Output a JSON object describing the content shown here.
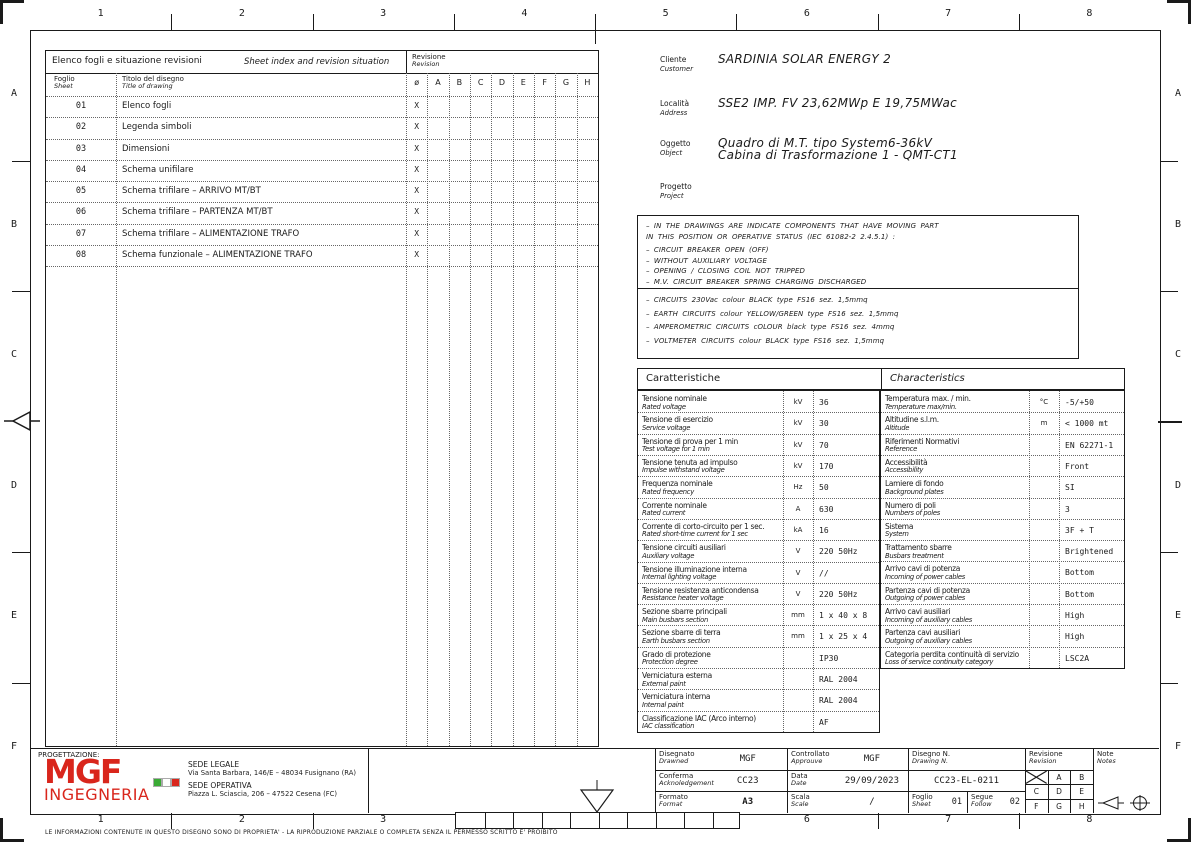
{
  "grid_refs": {
    "columns": [
      "1",
      "2",
      "3",
      "4",
      "5",
      "6",
      "7",
      "8"
    ],
    "rows": [
      "A",
      "B",
      "C",
      "D",
      "E",
      "F"
    ]
  },
  "sheet_index": {
    "title_it": "Elenco fogli e situazione revisioni",
    "title_en": "Sheet index and revision situation",
    "revision_label_it": "Revisione",
    "revision_label_en": "Revision",
    "foglio_it": "Foglio",
    "foglio_en": "Sheet",
    "titolo_it": "Titolo del disegno",
    "titolo_en": "Title of drawing",
    "rev_columns": [
      "ø",
      "A",
      "B",
      "C",
      "D",
      "E",
      "F",
      "G",
      "H"
    ],
    "rows": [
      {
        "num": "01",
        "title": "Elenco fogli",
        "rev": "X"
      },
      {
        "num": "02",
        "title": "Legenda simboli",
        "rev": "X"
      },
      {
        "num": "03",
        "title": "Dimensioni",
        "rev": "X"
      },
      {
        "num": "04",
        "title": "Schema unifilare",
        "rev": "X"
      },
      {
        "num": "05",
        "title": "Schema trifilare – ARRIVO MT/BT",
        "rev": "X"
      },
      {
        "num": "06",
        "title": "Schema trifilare – PARTENZA MT/BT",
        "rev": "X"
      },
      {
        "num": "07",
        "title": "Schema trifilare – ALIMENTAZIONE TRAFO",
        "rev": "X"
      },
      {
        "num": "08",
        "title": "Schema funzionale – ALIMENTAZIONE TRAFO",
        "rev": "X"
      }
    ]
  },
  "project_info": {
    "fields": [
      {
        "label_it": "Cliente",
        "label_en": "Customer",
        "lines": [
          "SARDINIA SOLAR ENERGY 2"
        ]
      },
      {
        "label_it": "Località",
        "label_en": "Address",
        "lines": [
          "SSE2 IMP. FV 23,62MWp E 19,75MWac"
        ]
      },
      {
        "label_it": "Oggetto",
        "label_en": "Object",
        "lines": [
          "Quadro di M.T. tipo System6-36kV",
          "Cabina di Trasformazione 1 - QMT-CT1"
        ]
      },
      {
        "label_it": "Progetto",
        "label_en": "Project",
        "lines": []
      }
    ]
  },
  "notes": {
    "moving_part_lines": [
      "–  IN THE DRAWINGS ARE INDICATE COMPONENTS THAT HAVE MOVING PART",
      "IN THIS POSITION OR OPERATIVE STATUS (IEC 61082-2 2.4.5.1) :",
      "–  CIRCUIT BREAKER OPEN (OFF)",
      "–  WITHOUT AUXILIARY VOLTAGE",
      "–  OPENING / CLOSING COIL NOT TRIPPED",
      "–  M.V. CIRCUIT BREAKER SPRING CHARGING DISCHARGED"
    ],
    "wiring_lines": [
      "–  CIRCUITS 230Vac colour BLACK type FS16 sez. 1,5mmq",
      "–  EARTH CIRCUITS colour YELLOW/GREEN type FS16 sez. 1,5mmq",
      "–  AMPEROMETRIC CIRCUITS cOLOUR black type FS16 sez. 4mmq",
      "–  VOLTMETER CIRCUITS colour BLACK type FS16 sez. 1,5mmq"
    ]
  },
  "characteristics": {
    "header_it": "Caratteristiche",
    "header_en": "Characteristics",
    "left_rows": [
      {
        "it": "Tensione nominale",
        "en": "Rated voltage",
        "unit": "kV",
        "value": "36"
      },
      {
        "it": "Tensione di esercizio",
        "en": "Service voltage",
        "unit": "kV",
        "value": "30"
      },
      {
        "it": "Tensione di prova per 1 min",
        "en": "Test voltage for 1 min",
        "unit": "kV",
        "value": "70"
      },
      {
        "it": "Tensione tenuta ad impulso",
        "en": "Impulse withstand voltage",
        "unit": "kV",
        "value": "170"
      },
      {
        "it": "Frequenza nominale",
        "en": "Rated frequency",
        "unit": "Hz",
        "value": "50"
      },
      {
        "it": "Corrente nominale",
        "en": "Rated current",
        "unit": "A",
        "value": "630"
      },
      {
        "it": "Corrente di corto-circuito per 1 sec.",
        "en": "Rated short-time current for 1 sec",
        "unit": "kA",
        "value": "16"
      },
      {
        "it": "Tensione circuiti ausiliari",
        "en": "Auxiliary voltage",
        "unit": "V",
        "value": "220 50Hz"
      },
      {
        "it": "Tensione illuminazione interna",
        "en": "Internal lighting voltage",
        "unit": "V",
        "value": "//"
      },
      {
        "it": "Tensione resistenza anticondensa",
        "en": "Resistance heater voltage",
        "unit": "V",
        "value": "220 50Hz"
      },
      {
        "it": "Sezione sbarre principali",
        "en": "Main busbars section",
        "unit": "mm",
        "value": "1 x 40 x 8"
      },
      {
        "it": "Sezione sbarre di terra",
        "en": "Earth busbars section",
        "unit": "mm",
        "value": "1 x 25 x 4"
      },
      {
        "it": "Grado di protezione",
        "en": "Protection degree",
        "unit": "",
        "value": "IP30"
      },
      {
        "it": "Verniciatura esterna",
        "en": "External paint",
        "unit": "",
        "value": "RAL 2004"
      },
      {
        "it": "Verniciatura interna",
        "en": "Internal paint",
        "unit": "",
        "value": "RAL 2004"
      },
      {
        "it": "Classificazione IAC (Arco interno)",
        "en": "IAC classification",
        "unit": "",
        "value": "AF"
      }
    ],
    "right_rows": [
      {
        "it": "Temperatura max. / min.",
        "en": "Temperature max/min.",
        "unit": "°C",
        "value": "-5/+50"
      },
      {
        "it": "Altitudine s.l.m.",
        "en": "Altitude",
        "unit": "m",
        "value": "< 1000 mt"
      },
      {
        "it": "Riferimenti Normativi",
        "en": "Reference",
        "unit": "",
        "value": "EN 62271-1"
      },
      {
        "it": "Accessibilità",
        "en": "Accessibility",
        "unit": "",
        "value": "Front"
      },
      {
        "it": "Lamiere di fondo",
        "en": "Background plates",
        "unit": "",
        "value": "SI"
      },
      {
        "it": "Numero di poli",
        "en": "Numbers of poles",
        "unit": "",
        "value": "3"
      },
      {
        "it": "Sistema",
        "en": "System",
        "unit": "",
        "value": "3F + T"
      },
      {
        "it": "Trattamento sbarre",
        "en": "Busbars treatment",
        "unit": "",
        "value": "Brightened"
      },
      {
        "it": "Arrivo cavi di potenza",
        "en": "Incoming of power cables",
        "unit": "",
        "value": "Bottom"
      },
      {
        "it": "Partenza cavi di potenza",
        "en": "Outgoing of power cables",
        "unit": "",
        "value": "Bottom"
      },
      {
        "it": "Arrivo cavi ausiliari",
        "en": "Incoming of auxiliary cables",
        "unit": "",
        "value": "High"
      },
      {
        "it": "Partenza cavi ausiliari",
        "en": "Outgoing of auxiliary cables",
        "unit": "",
        "value": "High"
      },
      {
        "it": "Categoria perdita continuità di servizio",
        "en": "Loss of service continuity category",
        "unit": "",
        "value": "LSC2A"
      }
    ]
  },
  "title_block": {
    "progettazione_label": "PROGETTAZIONE:",
    "logo_text": "MGF",
    "logo_sub": "INGEGNERIA",
    "sede_legale_title": "SEDE LEGALE",
    "sede_legale_addr": "Via Santa Barbara, 146/E – 48034 Fusignano (RA)",
    "sede_operativa_title": "SEDE OPERATIVA",
    "sede_operativa_addr": "Piazza L. Sciascia, 206 – 47522 Cesena (FC)",
    "disegnato_it": "Disegnato",
    "disegnato_en": "Drawned",
    "disegnato_val": "MGF",
    "controllato_it": "Controllato",
    "controllato_en": "Approuve",
    "controllato_val": "MGF",
    "disegno_it": "Disegno N.",
    "disegno_en": "Drawing N.",
    "disegno_val": "CC23-EL-0211",
    "conferma_it": "Conferma",
    "conferma_en": "Acknoledgement",
    "conferma_val": "CC23",
    "data_it": "Data",
    "data_en": "Date",
    "data_val": "29/09/2023",
    "formato_it": "Formato",
    "formato_en": "Format",
    "formato_val": "A3",
    "scala_it": "Scala",
    "scala_en": "Scale",
    "scala_val": "/",
    "foglio_it": "Foglio",
    "foglio_en": "Sheet",
    "foglio_val": "01",
    "segue_it": "Segue",
    "segue_en": "Follow",
    "segue_val": "02",
    "revisione_it": "Revisione",
    "revisione_en": "Revision",
    "rev_cells": [
      "A",
      "B",
      "C",
      "D",
      "E",
      "F",
      "G",
      "H"
    ],
    "note_it": "Note",
    "note_en": "Notes"
  },
  "footer": {
    "disclaimer": "LE INFORMAZIONI CONTENUTE IN QUESTO DISEGNO SONO DI PROPRIETA'  - LA RIPRODUZIONE PARZIALE O COMPLETA SENZA IL PERMESSO SCRITTO  E' PROIBITO"
  },
  "colors": {
    "logo_red": "#d9261c",
    "flag_green": "#3aaa35",
    "flag_white": "#ffffff",
    "flag_red": "#d9261c",
    "line_black": "#1a1a1a"
  }
}
